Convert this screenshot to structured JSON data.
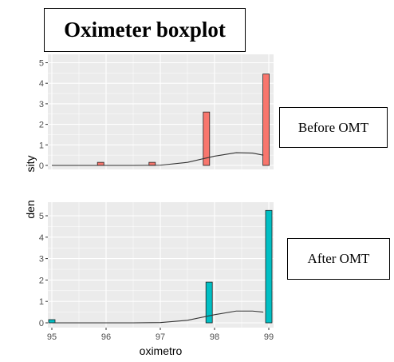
{
  "title": "Oximeter boxplot",
  "before_label": "Before OMT",
  "after_label": "After OMT",
  "xlabel": "oximetro",
  "ylabel_before": "sity",
  "ylabel_after": "den",
  "colors": {
    "before": "#F8766D",
    "after": "#00BFC4",
    "panel": "#EBEBEB",
    "grid": "#ffffff",
    "curve": "#333333"
  },
  "chart_data": [
    {
      "type": "bar",
      "name": "Before OMT",
      "xlim": [
        95,
        99
      ],
      "ylim": [
        0,
        5
      ],
      "yticks": [
        0,
        1,
        2,
        3,
        4,
        5
      ],
      "bars": [
        {
          "x": 95.9,
          "y": 0.15
        },
        {
          "x": 96.85,
          "y": 0.15
        },
        {
          "x": 97.85,
          "y": 2.6
        },
        {
          "x": 98.95,
          "y": 4.45
        }
      ],
      "density_curve": [
        [
          95,
          0
        ],
        [
          96.5,
          0
        ],
        [
          97,
          0.01
        ],
        [
          97.5,
          0.15
        ],
        [
          98,
          0.45
        ],
        [
          98.4,
          0.62
        ],
        [
          98.7,
          0.6
        ],
        [
          98.9,
          0.5
        ]
      ]
    },
    {
      "type": "bar",
      "name": "After OMT",
      "xlim": [
        95,
        99
      ],
      "ylim": [
        0,
        5
      ],
      "xticks": [
        95,
        96,
        97,
        98,
        99
      ],
      "yticks": [
        0,
        1,
        2,
        3,
        4,
        5
      ],
      "bars": [
        {
          "x": 95.0,
          "y": 0.15
        },
        {
          "x": 97.9,
          "y": 1.9
        },
        {
          "x": 99.0,
          "y": 5.25
        }
      ],
      "density_curve": [
        [
          95,
          0
        ],
        [
          96.5,
          0
        ],
        [
          97,
          0.01
        ],
        [
          97.5,
          0.12
        ],
        [
          98,
          0.38
        ],
        [
          98.4,
          0.55
        ],
        [
          98.7,
          0.55
        ],
        [
          98.9,
          0.5
        ]
      ]
    }
  ]
}
